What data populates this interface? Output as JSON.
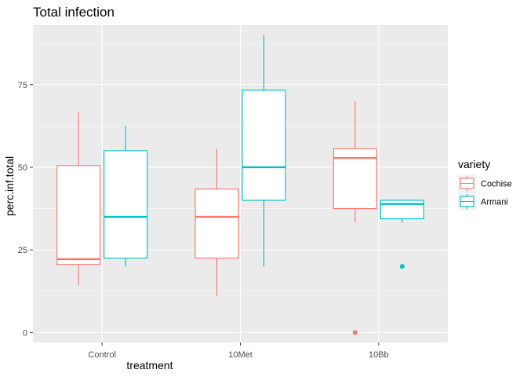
{
  "chart_data": {
    "type": "boxplot",
    "title": "Total infection",
    "xlabel": "treatment",
    "ylabel": "perc.inf.total",
    "categories": [
      "Control",
      "10Met",
      "10Bb"
    ],
    "ylim": [
      -3,
      93
    ],
    "yticks": [
      0,
      25,
      50,
      75
    ],
    "grid": true,
    "legend": {
      "title": "variety",
      "position": "right"
    },
    "series": [
      {
        "name": "Cochise",
        "color": "#F8766D",
        "boxes": [
          {
            "category": "Control",
            "lower_whisker": 14.3,
            "q1": 20.6,
            "median": 22.2,
            "q3": 50.5,
            "upper_whisker": 66.7,
            "outliers": []
          },
          {
            "category": "10Met",
            "lower_whisker": 11.1,
            "q1": 22.5,
            "median": 35.0,
            "q3": 43.4,
            "upper_whisker": 55.6,
            "outliers": []
          },
          {
            "category": "10Bb",
            "lower_whisker": 33.3,
            "q1": 37.5,
            "median": 52.8,
            "q3": 55.6,
            "upper_whisker": 70.0,
            "outliers": [
              0
            ]
          }
        ]
      },
      {
        "name": "Armani",
        "color": "#00BFC4",
        "boxes": [
          {
            "category": "Control",
            "lower_whisker": 20.0,
            "q1": 22.5,
            "median": 35.0,
            "q3": 55.0,
            "upper_whisker": 62.5,
            "outliers": []
          },
          {
            "category": "10Met",
            "lower_whisker": 20.0,
            "q1": 40.0,
            "median": 50.0,
            "q3": 73.3,
            "upper_whisker": 90.0,
            "outliers": []
          },
          {
            "category": "10Bb",
            "lower_whisker": 33.3,
            "q1": 34.4,
            "median": 38.9,
            "q3": 40.0,
            "upper_whisker": 40.0,
            "outliers": [
              20.0
            ]
          }
        ]
      }
    ]
  }
}
